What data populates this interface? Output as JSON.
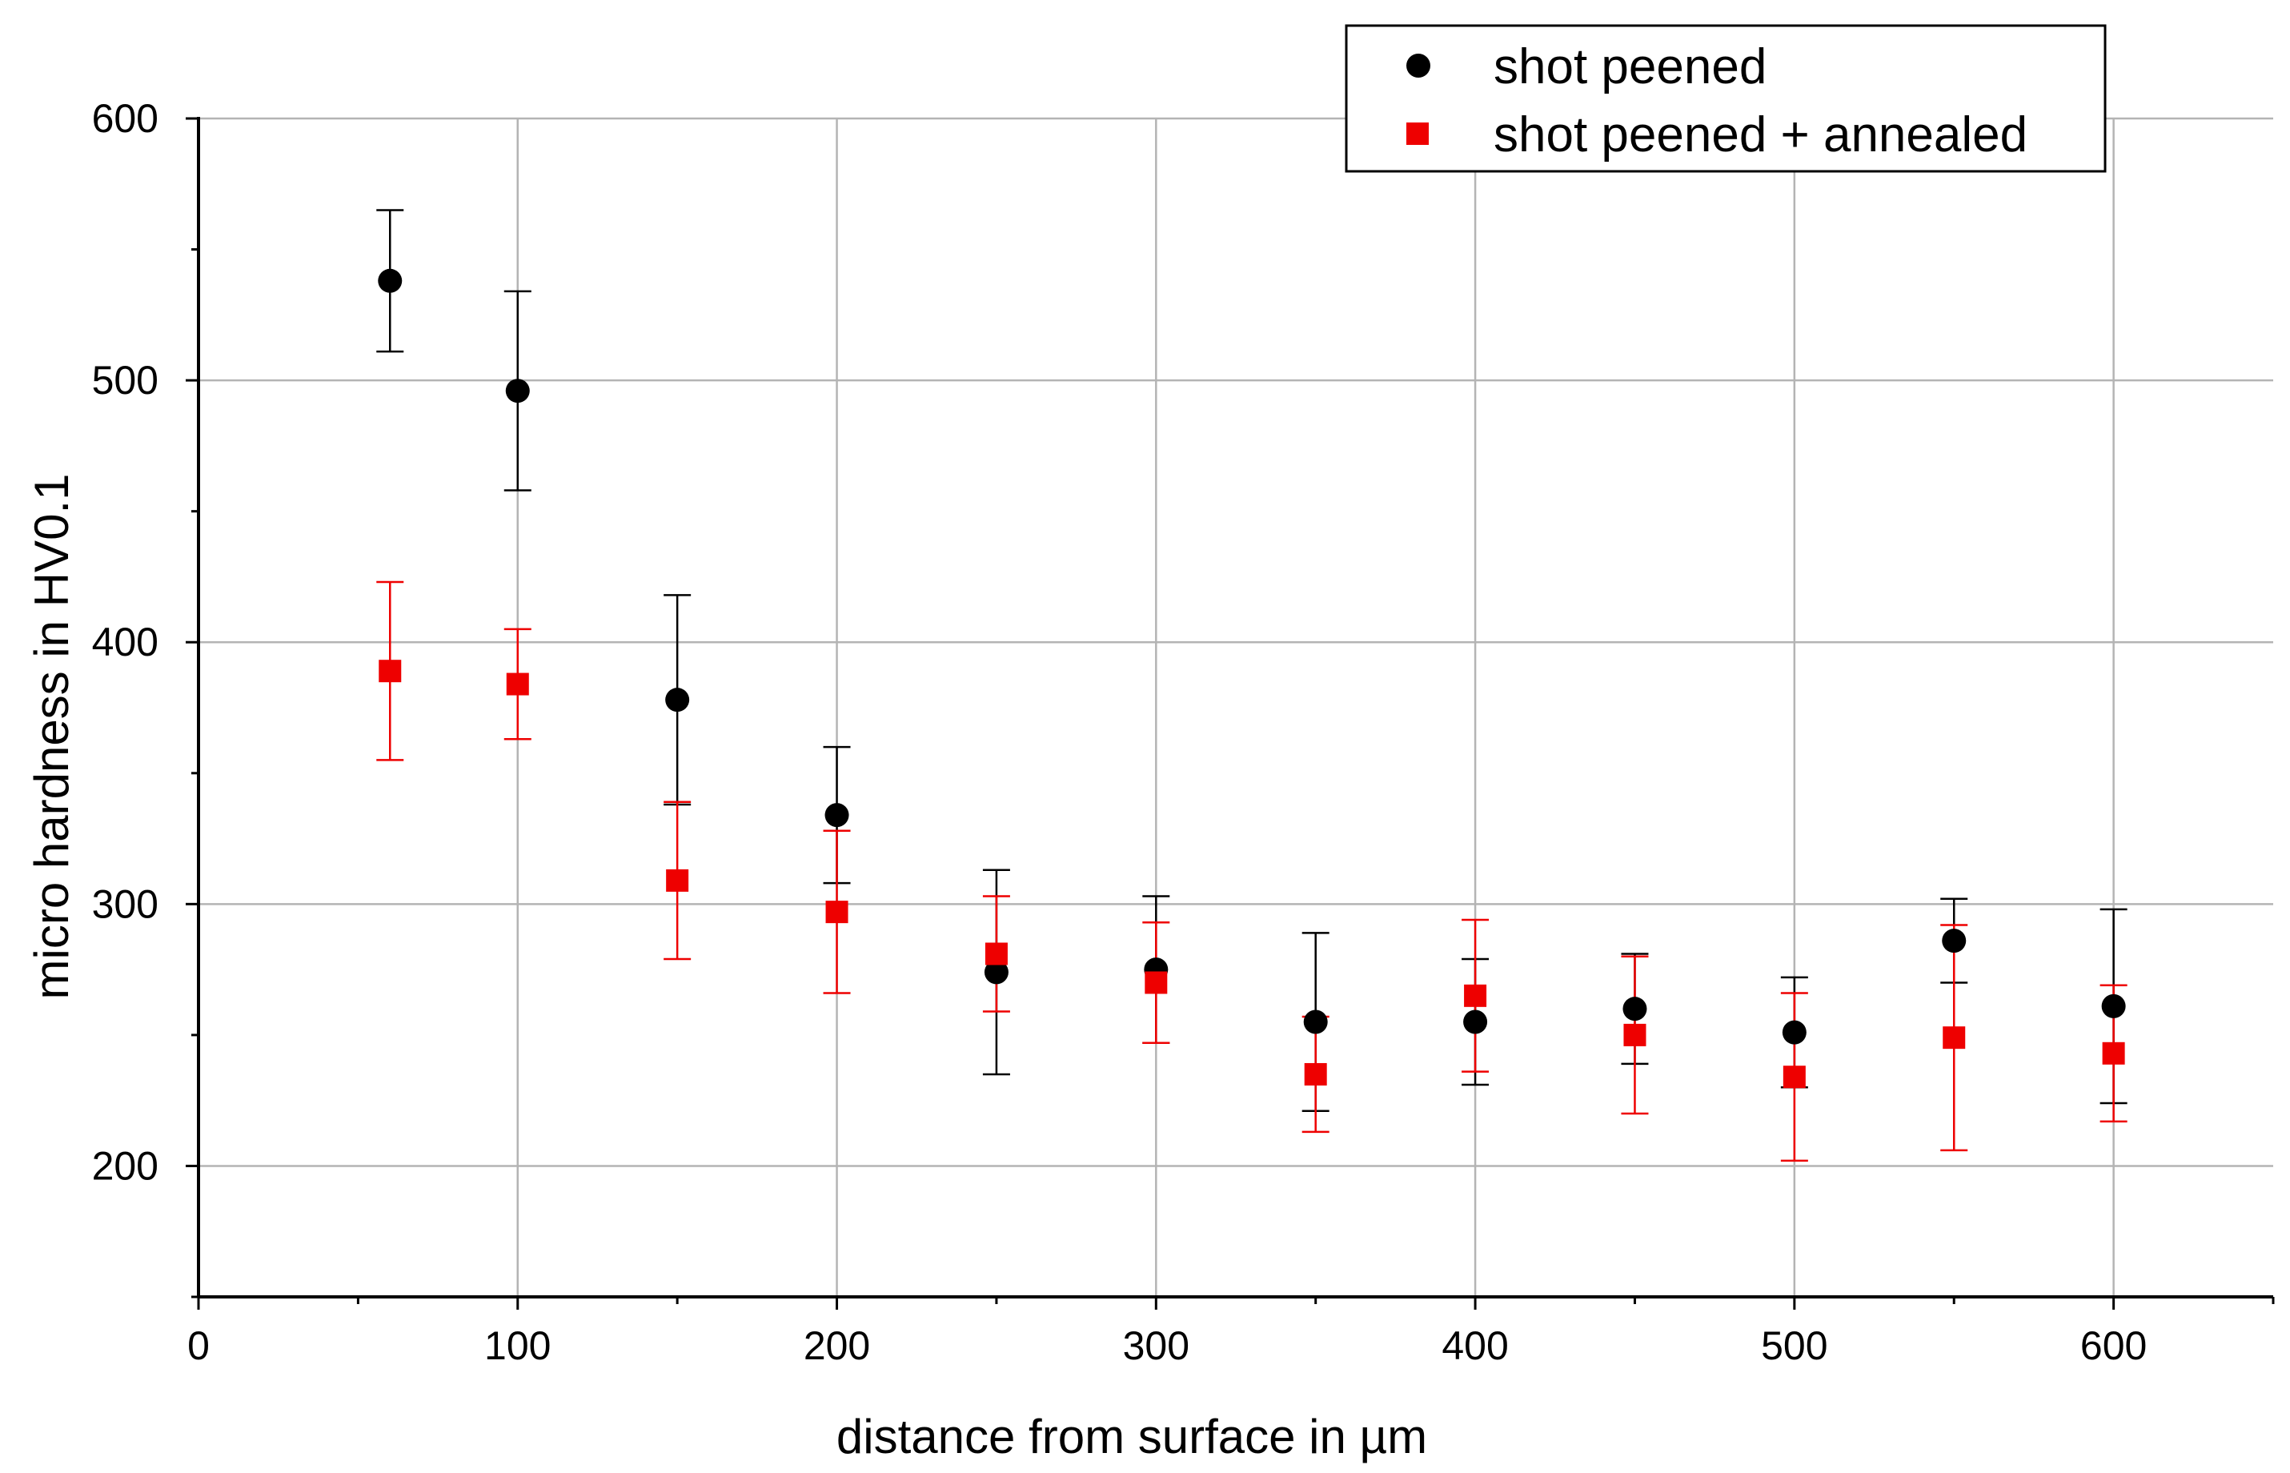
{
  "chart_data": {
    "type": "scatter",
    "title": "",
    "xlabel": "distance from surface in µm",
    "ylabel": "micro hardness in HV0.1",
    "xlim": [
      0,
      650
    ],
    "ylim": [
      150,
      600
    ],
    "xticks": [
      0,
      100,
      200,
      300,
      400,
      500,
      600
    ],
    "xtick_labels": [
      "0",
      "100",
      "200",
      "300",
      "400",
      "500",
      "600"
    ],
    "yticks": [
      200,
      300,
      400,
      500,
      600
    ],
    "ytick_labels": [
      "200",
      "300",
      "400",
      "500",
      "600"
    ],
    "x_minor_step": 50,
    "y_minor_step": 50,
    "grid": true,
    "legend_position": "top-right",
    "series": [
      {
        "name": "shot peened",
        "marker": "circle",
        "color": "#000000",
        "points": [
          {
            "x": 60,
            "y": 538,
            "err_low": 511,
            "err_high": 565
          },
          {
            "x": 100,
            "y": 496,
            "err_low": 458,
            "err_high": 534
          },
          {
            "x": 150,
            "y": 378,
            "err_low": 338,
            "err_high": 418
          },
          {
            "x": 200,
            "y": 334,
            "err_low": 308,
            "err_high": 360
          },
          {
            "x": 250,
            "y": 274,
            "err_low": 235,
            "err_high": 313
          },
          {
            "x": 300,
            "y": 275,
            "err_low": 247,
            "err_high": 303
          },
          {
            "x": 350,
            "y": 255,
            "err_low": 221,
            "err_high": 289
          },
          {
            "x": 400,
            "y": 255,
            "err_low": 231,
            "err_high": 279
          },
          {
            "x": 450,
            "y": 260,
            "err_low": 239,
            "err_high": 281
          },
          {
            "x": 500,
            "y": 251,
            "err_low": 230,
            "err_high": 272
          },
          {
            "x": 550,
            "y": 286,
            "err_low": 270,
            "err_high": 302
          },
          {
            "x": 600,
            "y": 261,
            "err_low": 224,
            "err_high": 298
          }
        ]
      },
      {
        "name": "shot peened + annealed",
        "marker": "square",
        "color": "#ee0000",
        "points": [
          {
            "x": 60,
            "y": 389,
            "err_low": 355,
            "err_high": 423
          },
          {
            "x": 100,
            "y": 384,
            "err_low": 363,
            "err_high": 405
          },
          {
            "x": 150,
            "y": 309,
            "err_low": 279,
            "err_high": 339
          },
          {
            "x": 200,
            "y": 297,
            "err_low": 266,
            "err_high": 328
          },
          {
            "x": 250,
            "y": 281,
            "err_low": 259,
            "err_high": 303
          },
          {
            "x": 300,
            "y": 270,
            "err_low": 247,
            "err_high": 293
          },
          {
            "x": 350,
            "y": 235,
            "err_low": 213,
            "err_high": 257
          },
          {
            "x": 400,
            "y": 265,
            "err_low": 236,
            "err_high": 294
          },
          {
            "x": 450,
            "y": 250,
            "err_low": 220,
            "err_high": 280
          },
          {
            "x": 500,
            "y": 234,
            "err_low": 202,
            "err_high": 266
          },
          {
            "x": 550,
            "y": 249,
            "err_low": 206,
            "err_high": 292
          },
          {
            "x": 600,
            "y": 243,
            "err_low": 217,
            "err_high": 269
          }
        ]
      }
    ]
  },
  "colors": {
    "grid": "#b4b4b4",
    "axis": "#000000"
  }
}
